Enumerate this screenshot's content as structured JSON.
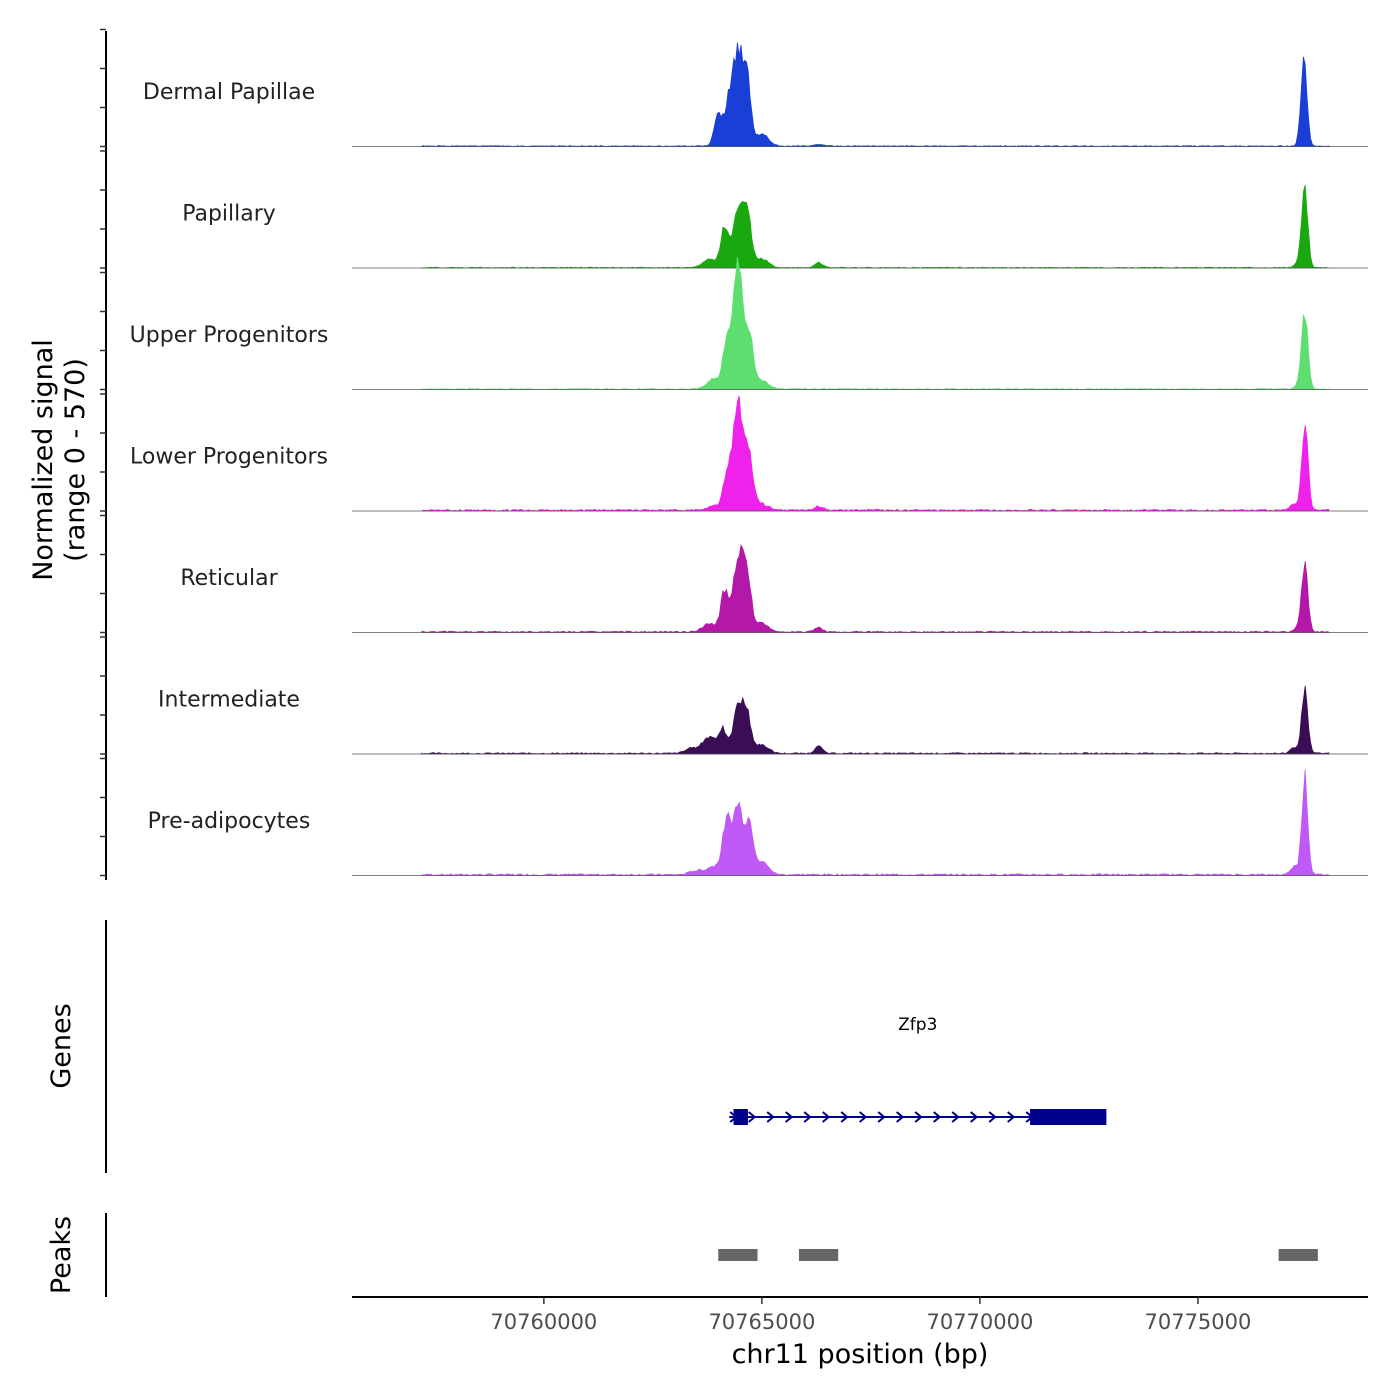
{
  "chart_data": {
    "type": "area",
    "ylabel_line1": "Normalized signal",
    "ylabel_line2": "(range 0 - 570)",
    "xlabel": "chr11 position (bp)",
    "xlim": [
      70755600,
      70778900
    ],
    "ylim": [
      0,
      570
    ],
    "x_ticks": [
      70760000,
      70765000,
      70770000,
      70775000
    ],
    "x_tick_labels": [
      "70760000",
      "70765000",
      "70770000",
      "70775000"
    ],
    "tracks": [
      {
        "name": "Dermal Papillae",
        "color": "#1a3fd6",
        "base": 2,
        "peaks": [
          [
            70764000,
            160,
            90
          ],
          [
            70764250,
            220,
            90
          ],
          [
            70764450,
            420,
            100
          ],
          [
            70764650,
            320,
            90
          ],
          [
            70765000,
            60,
            150
          ],
          [
            70766300,
            6,
            150
          ],
          [
            70777430,
            400,
            70
          ]
        ]
      },
      {
        "name": "Papillary",
        "color": "#1aa80f",
        "base": 2,
        "peaks": [
          [
            70763800,
            40,
            150
          ],
          [
            70764150,
            190,
            90
          ],
          [
            70764450,
            250,
            110
          ],
          [
            70764650,
            260,
            100
          ],
          [
            70765000,
            40,
            150
          ],
          [
            70766300,
            25,
            90
          ],
          [
            70777300,
            20,
            80
          ],
          [
            70777450,
            360,
            70
          ]
        ]
      },
      {
        "name": "Upper Progenitors",
        "color": "#5ede6e",
        "base": 2,
        "peaks": [
          [
            70763900,
            50,
            150
          ],
          [
            70764200,
            220,
            90
          ],
          [
            70764450,
            560,
            110
          ],
          [
            70764700,
            250,
            100
          ],
          [
            70765000,
            40,
            150
          ],
          [
            70777300,
            20,
            80
          ],
          [
            70777450,
            350,
            70
          ]
        ]
      },
      {
        "name": "Lower Progenitors",
        "color": "#ef22eb",
        "base": 4,
        "peaks": [
          [
            70763900,
            20,
            150
          ],
          [
            70764200,
            160,
            90
          ],
          [
            70764450,
            500,
            110
          ],
          [
            70764700,
            240,
            100
          ],
          [
            70765000,
            30,
            150
          ],
          [
            70766300,
            18,
            90
          ],
          [
            70777200,
            30,
            80
          ],
          [
            70777450,
            420,
            70
          ]
        ]
      },
      {
        "name": "Reticular",
        "color": "#b318a8",
        "base": 3,
        "peaks": [
          [
            70763800,
            40,
            150
          ],
          [
            70764150,
            190,
            90
          ],
          [
            70764450,
            340,
            110
          ],
          [
            70764650,
            260,
            100
          ],
          [
            70765000,
            40,
            150
          ],
          [
            70766300,
            20,
            90
          ],
          [
            70777300,
            20,
            80
          ],
          [
            70777450,
            330,
            70
          ]
        ]
      },
      {
        "name": "Intermediate",
        "color": "#3b0d55",
        "base": 3,
        "peaks": [
          [
            70763400,
            25,
            150
          ],
          [
            70763800,
            80,
            150
          ],
          [
            70764100,
            110,
            90
          ],
          [
            70764450,
            210,
            110
          ],
          [
            70764650,
            180,
            100
          ],
          [
            70765000,
            40,
            150
          ],
          [
            70766300,
            40,
            80
          ],
          [
            70777200,
            30,
            80
          ],
          [
            70777450,
            310,
            70
          ]
        ]
      },
      {
        "name": "Pre-adipocytes",
        "color": "#c05af6",
        "base": 4,
        "peaks": [
          [
            70763500,
            20,
            150
          ],
          [
            70763900,
            40,
            150
          ],
          [
            70764200,
            250,
            100
          ],
          [
            70764450,
            320,
            100
          ],
          [
            70764700,
            250,
            100
          ],
          [
            70765000,
            60,
            150
          ],
          [
            70777200,
            40,
            80
          ],
          [
            70777450,
            460,
            70
          ]
        ]
      }
    ],
    "genes": {
      "label": "Genes",
      "items": [
        {
          "name": "Zfp3",
          "color": "#00008b",
          "strand": "+",
          "start": 70764250,
          "end": 70772900,
          "exons": [
            [
              70764350,
              70764680
            ],
            [
              70771150,
              70772900
            ]
          ]
        }
      ]
    },
    "peaks": {
      "label": "Peaks",
      "color": "#666666",
      "regions": [
        [
          70764000,
          70764900
        ],
        [
          70765850,
          70766750
        ],
        [
          70776850,
          70777750
        ]
      ]
    }
  }
}
